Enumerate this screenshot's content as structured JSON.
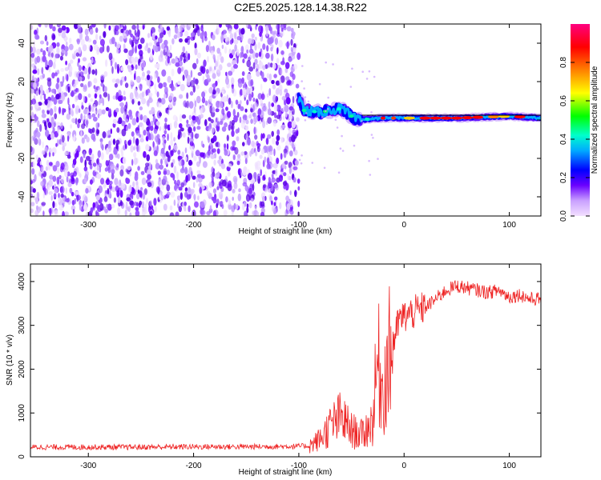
{
  "title": "C2E5.2025.128.14.38.R22",
  "colors": {
    "background_scatter": "#7b2cff",
    "snr_line": "#ee2222",
    "colormap": [
      "#f3e0ff",
      "#b07cff",
      "#5500ff",
      "#0000ff",
      "#00aaff",
      "#00ffcc",
      "#00ff00",
      "#ffff00",
      "#ff8000",
      "#ff0000",
      "#ff0080"
    ]
  },
  "chart_data": [
    {
      "type": "heatmap",
      "xlabel": "Height of straight line (km)",
      "ylabel": "Frequency (Hz)",
      "xlim": [
        -355,
        130
      ],
      "ylim": [
        -50,
        50
      ],
      "xticks": [
        -300,
        -200,
        -100,
        0,
        100
      ],
      "yticks": [
        -40,
        -20,
        0,
        20,
        40
      ],
      "colorbar": {
        "label": "Normalized spectral amplitude",
        "range": [
          0.0,
          1.0
        ],
        "ticks": [
          0.0,
          0.2,
          0.4,
          0.6,
          0.8
        ]
      },
      "regions": [
        {
          "x_range": [
            -355,
            -100
          ],
          "description_value": "broadband noise",
          "amplitude": 0.2
        },
        {
          "x_range": [
            -100,
            130
          ],
          "ridge_frequency_hz": [
            [
              -100,
              12
            ],
            [
              -95,
              5
            ],
            [
              -80,
              4
            ],
            [
              -60,
              6
            ],
            [
              -45,
              0
            ],
            [
              -20,
              1
            ],
            [
              0,
              1
            ],
            [
              50,
              1
            ],
            [
              100,
              2
            ],
            [
              130,
              1
            ]
          ],
          "amplitude": 0.9
        }
      ]
    },
    {
      "type": "line",
      "xlabel": "Height of straight line (km)",
      "ylabel": "SNR (10 * v/v)",
      "xlim": [
        -355,
        130
      ],
      "ylim": [
        0,
        4400
      ],
      "xticks": [
        -300,
        -200,
        -100,
        0,
        100
      ],
      "yticks": [
        0,
        1000,
        2000,
        3000,
        4000
      ],
      "series": [
        {
          "x": [
            -355,
            -300,
            -250,
            -200,
            -150,
            -100,
            -90,
            -80,
            -70,
            -60,
            -50,
            -40,
            -30,
            -25,
            -20,
            -15,
            -10,
            -5,
            0,
            10,
            20,
            30,
            40,
            50,
            60,
            70,
            80,
            90,
            100,
            110,
            120,
            130
          ],
          "y": [
            220,
            220,
            220,
            230,
            230,
            240,
            250,
            400,
            700,
            900,
            600,
            500,
            800,
            2200,
            1500,
            2200,
            2600,
            3100,
            3200,
            3300,
            3400,
            3600,
            3800,
            3900,
            3850,
            3800,
            3750,
            3800,
            3650,
            3700,
            3600,
            3600
          ]
        }
      ]
    }
  ]
}
